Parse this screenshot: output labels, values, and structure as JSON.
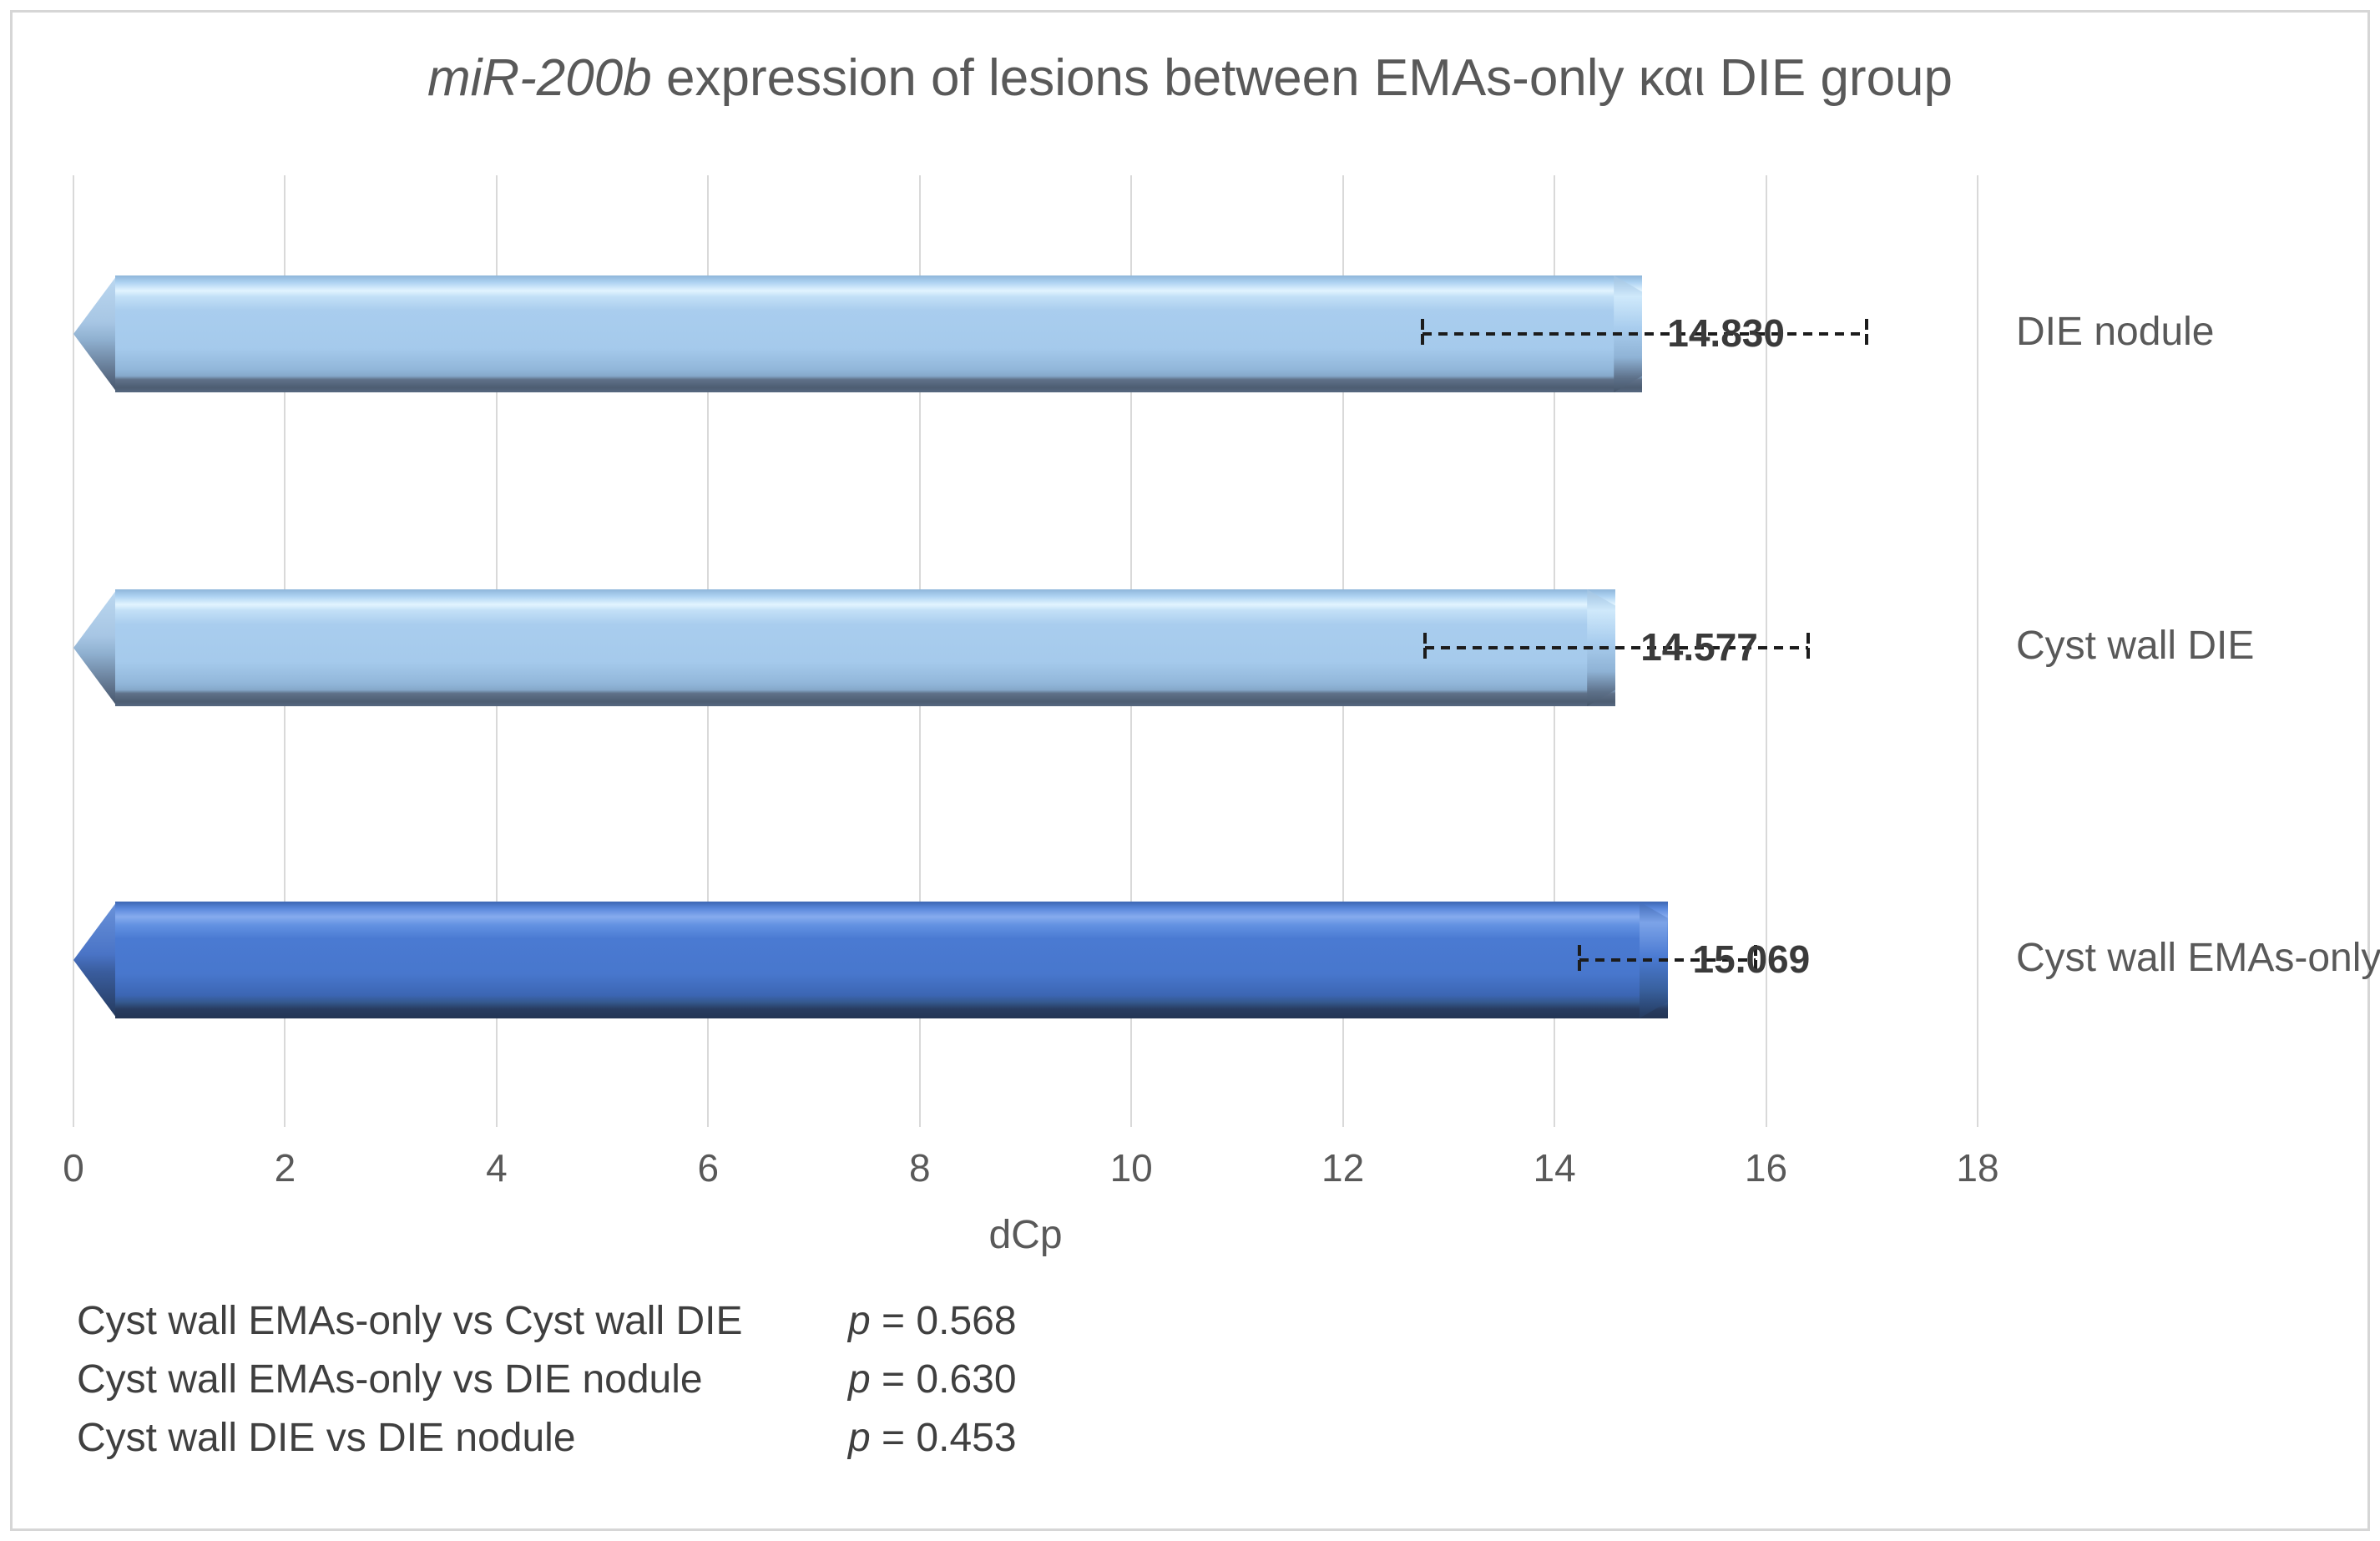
{
  "title": {
    "italic_part": "miR-200b",
    "rest_part": " expression of lesions between EMAs-only και DIE group"
  },
  "chart_data": {
    "type": "bar",
    "orientation": "horizontal",
    "title": "miR-200b expression of lesions between EMAs-only και DIE group",
    "categories": [
      "DIE nodule",
      "Cyst wall DIE",
      "Cyst wall EMAs-only"
    ],
    "values": [
      14.83,
      14.577,
      15.069
    ],
    "value_labels": [
      "14.830",
      "14.577",
      "15.069"
    ],
    "error_low": [
      12.75,
      12.78,
      14.24
    ],
    "error_high": [
      16.95,
      16.4,
      15.9
    ],
    "bar_colors": [
      "light-blue",
      "light-blue",
      "dark-blue"
    ],
    "xlabel": "dCp",
    "x_ticks": [
      "0",
      "2",
      "4",
      "6",
      "8",
      "10",
      "12",
      "14",
      "16",
      "18"
    ],
    "xlim": [
      0,
      18
    ],
    "grid": "vertical-only",
    "legend": "none"
  },
  "colors": {
    "light_bar": "#a9cdee",
    "dark_bar": "#4a7ad2",
    "gridline": "#d9d9d9",
    "frame_border": "#d6d6d6",
    "axis_text": "#595959",
    "value_text": "#3a3a3a",
    "error_bar": "#1c1c1c"
  },
  "stats": {
    "rows": [
      {
        "comparison": "Cyst wall EMAs-only vs Cyst wall DIE",
        "p_symbol": "p",
        "p_value": " = 0.568"
      },
      {
        "comparison": "Cyst wall EMAs-only vs DIE nodule",
        "p_symbol": "p",
        "p_value": " = 0.630"
      },
      {
        "comparison": "Cyst wall DIE vs DIE nodule",
        "p_symbol": "p",
        "p_value": " = 0.453"
      }
    ]
  }
}
